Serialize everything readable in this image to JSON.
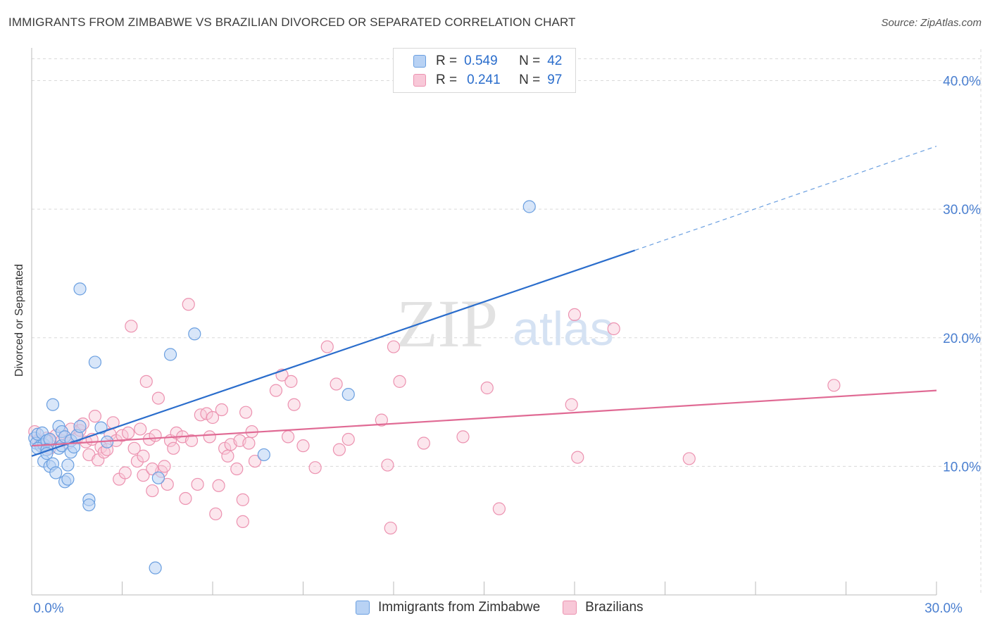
{
  "title": "IMMIGRANTS FROM ZIMBABWE VS BRAZILIAN DIVORCED OR SEPARATED CORRELATION CHART",
  "source": "Source: ZipAtlas.com",
  "watermark": {
    "zip": "ZIP",
    "atlas": "atlas"
  },
  "colors": {
    "blue": "#2a6dcc",
    "blue_fill": "#b8d2f4",
    "blue_stroke": "#6a9fe0",
    "pink": "#e06a94",
    "pink_fill": "#f8c8d8",
    "pink_stroke": "#ec92b0",
    "grid": "#d9d9d9",
    "axis_text": "#4a7fd0"
  },
  "legend": {
    "rows": [
      {
        "r_label": "R =",
        "r_value": "0.549",
        "n_label": "N =",
        "n_value": "42"
      },
      {
        "r_label": "R =",
        "r_value": "0.241",
        "n_label": "N =",
        "n_value": "97"
      }
    ]
  },
  "chart_data": {
    "type": "scatter",
    "xlabel": "",
    "ylabel": "Divorced or Separated",
    "xlim": [
      0,
      30
    ],
    "ylim": [
      0,
      42
    ],
    "x_tick_labels": [
      {
        "value": 0,
        "label": "0.0%"
      },
      {
        "value": 30,
        "label": "30.0%"
      }
    ],
    "y_tick_labels": [
      {
        "value": 10,
        "label": "10.0%"
      },
      {
        "value": 20,
        "label": "20.0%"
      },
      {
        "value": 30,
        "label": "30.0%"
      },
      {
        "value": 40,
        "label": "40.0%"
      }
    ],
    "grid": true,
    "legend_position": "top-center",
    "series": [
      {
        "name": "Immigrants from Zimbabwe",
        "color": "#2a6dcc",
        "trendline": {
          "x1": 0,
          "y1": 10.8,
          "x2": 20,
          "y2": 26.8,
          "dashed_to_x": 30,
          "dashed_to_y": 34.9
        },
        "points": [
          [
            0.1,
            12.2
          ],
          [
            0.15,
            11.8
          ],
          [
            0.2,
            12.5
          ],
          [
            0.3,
            11.6
          ],
          [
            0.35,
            12.6
          ],
          [
            0.4,
            11.7
          ],
          [
            0.5,
            12.0
          ],
          [
            0.6,
            12.1
          ],
          [
            0.2,
            11.4
          ],
          [
            0.5,
            11.3
          ],
          [
            0.4,
            10.4
          ],
          [
            0.5,
            11.0
          ],
          [
            0.6,
            10.0
          ],
          [
            0.7,
            10.2
          ],
          [
            0.8,
            9.5
          ],
          [
            0.7,
            14.8
          ],
          [
            0.9,
            11.4
          ],
          [
            0.9,
            13.1
          ],
          [
            1.0,
            12.7
          ],
          [
            1.0,
            11.6
          ],
          [
            1.1,
            12.3
          ],
          [
            1.1,
            8.8
          ],
          [
            1.2,
            9.0
          ],
          [
            1.2,
            10.1
          ],
          [
            1.3,
            12.0
          ],
          [
            1.3,
            11.1
          ],
          [
            1.4,
            11.5
          ],
          [
            1.5,
            12.4
          ],
          [
            1.6,
            13.1
          ],
          [
            1.6,
            23.8
          ],
          [
            1.9,
            7.4
          ],
          [
            1.9,
            7.0
          ],
          [
            2.1,
            18.1
          ],
          [
            2.3,
            13.0
          ],
          [
            2.5,
            11.9
          ],
          [
            4.1,
            2.1
          ],
          [
            4.2,
            9.1
          ],
          [
            4.6,
            18.7
          ],
          [
            5.4,
            20.3
          ],
          [
            7.7,
            10.9
          ],
          [
            10.5,
            15.6
          ],
          [
            16.5,
            30.2
          ]
        ]
      },
      {
        "name": "Brazilians",
        "color": "#e06a94",
        "trendline": {
          "x1": 0,
          "y1": 11.6,
          "x2": 30,
          "y2": 15.9
        },
        "points": [
          [
            0.1,
            12.7
          ],
          [
            0.2,
            12.0
          ],
          [
            0.3,
            11.8
          ],
          [
            0.4,
            11.6
          ],
          [
            0.5,
            12.2
          ],
          [
            0.6,
            12.0
          ],
          [
            0.8,
            12.4
          ],
          [
            1.0,
            12.0
          ],
          [
            1.1,
            12.3
          ],
          [
            1.2,
            11.8
          ],
          [
            1.3,
            12.9
          ],
          [
            1.5,
            12.2
          ],
          [
            1.6,
            12.8
          ],
          [
            1.7,
            13.3
          ],
          [
            1.8,
            11.9
          ],
          [
            1.9,
            10.9
          ],
          [
            2.0,
            12.1
          ],
          [
            2.1,
            13.9
          ],
          [
            2.2,
            10.5
          ],
          [
            2.3,
            11.5
          ],
          [
            2.4,
            11.1
          ],
          [
            2.5,
            11.3
          ],
          [
            2.6,
            12.5
          ],
          [
            2.7,
            13.4
          ],
          [
            2.8,
            12.0
          ],
          [
            2.9,
            9.0
          ],
          [
            3.0,
            12.4
          ],
          [
            3.1,
            9.5
          ],
          [
            3.2,
            12.6
          ],
          [
            3.3,
            20.9
          ],
          [
            3.4,
            11.4
          ],
          [
            3.5,
            10.4
          ],
          [
            3.6,
            12.9
          ],
          [
            3.7,
            10.8
          ],
          [
            3.8,
            16.6
          ],
          [
            3.9,
            12.1
          ],
          [
            4.0,
            8.1
          ],
          [
            4.1,
            12.4
          ],
          [
            4.2,
            15.3
          ],
          [
            4.3,
            9.6
          ],
          [
            4.4,
            10.0
          ],
          [
            4.5,
            8.6
          ],
          [
            4.6,
            12.0
          ],
          [
            4.7,
            11.4
          ],
          [
            4.8,
            12.6
          ],
          [
            5.0,
            12.3
          ],
          [
            5.1,
            7.5
          ],
          [
            5.2,
            22.6
          ],
          [
            5.3,
            12.0
          ],
          [
            5.5,
            8.6
          ],
          [
            5.6,
            14.0
          ],
          [
            5.8,
            14.1
          ],
          [
            5.9,
            12.3
          ],
          [
            6.0,
            13.8
          ],
          [
            6.1,
            6.3
          ],
          [
            6.2,
            8.5
          ],
          [
            6.3,
            14.4
          ],
          [
            6.4,
            11.4
          ],
          [
            6.5,
            10.8
          ],
          [
            6.6,
            11.7
          ],
          [
            6.8,
            9.8
          ],
          [
            6.9,
            12.0
          ],
          [
            7.0,
            7.4
          ],
          [
            7.1,
            14.2
          ],
          [
            7.2,
            11.8
          ],
          [
            7.3,
            12.7
          ],
          [
            7.4,
            10.4
          ],
          [
            7.0,
            5.7
          ],
          [
            8.1,
            15.9
          ],
          [
            8.3,
            17.1
          ],
          [
            8.5,
            12.3
          ],
          [
            8.6,
            16.6
          ],
          [
            8.7,
            14.8
          ],
          [
            9.0,
            11.6
          ],
          [
            9.4,
            9.9
          ],
          [
            9.8,
            19.3
          ],
          [
            10.1,
            16.4
          ],
          [
            10.2,
            11.3
          ],
          [
            10.5,
            12.1
          ],
          [
            11.6,
            13.6
          ],
          [
            11.8,
            10.1
          ],
          [
            11.9,
            5.2
          ],
          [
            12.0,
            19.3
          ],
          [
            12.2,
            16.6
          ],
          [
            13.0,
            11.8
          ],
          [
            14.3,
            12.3
          ],
          [
            15.1,
            16.1
          ],
          [
            15.5,
            6.7
          ],
          [
            17.9,
            14.8
          ],
          [
            18.0,
            21.8
          ],
          [
            18.1,
            10.7
          ],
          [
            19.3,
            20.7
          ],
          [
            21.8,
            10.6
          ],
          [
            26.6,
            16.3
          ],
          [
            3.7,
            9.3
          ],
          [
            4.0,
            9.8
          ],
          [
            0.6,
            11.4
          ]
        ]
      }
    ]
  }
}
